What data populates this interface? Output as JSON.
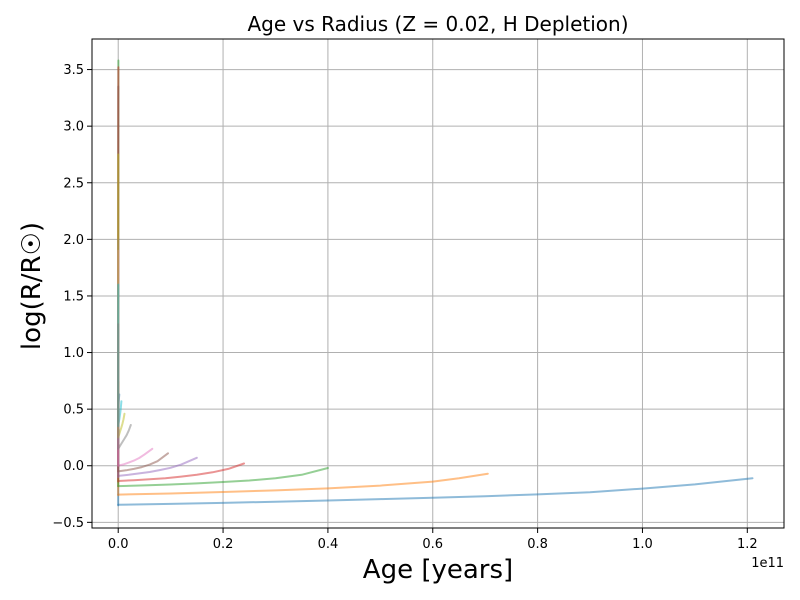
{
  "chart_data": {
    "type": "line",
    "title": "Age vs Radius (Z = 0.02, H Depletion)",
    "xlabel": "Age [years]",
    "ylabel": "log(R/R☉)",
    "x_offset_label": "1e11",
    "xlim": [
      -0.05,
      1.27
    ],
    "ylim": [
      -0.55,
      3.77
    ],
    "x_scale_factor": 100000000000.0,
    "x_ticks": [
      0.0,
      0.2,
      0.4,
      0.6,
      0.8,
      1.0,
      1.2
    ],
    "x_tick_labels": [
      "0.0",
      "0.2",
      "0.4",
      "0.6",
      "0.8",
      "1.0",
      "1.2"
    ],
    "y_ticks": [
      -0.5,
      0.0,
      0.5,
      1.0,
      1.5,
      2.0,
      2.5,
      3.0,
      3.5
    ],
    "y_tick_labels": [
      "−0.5",
      "0.0",
      "0.5",
      "1.0",
      "1.5",
      "2.0",
      "2.5",
      "3.0",
      "3.5"
    ],
    "grid": true,
    "series": [
      {
        "color": "#1f77b4",
        "x": [
          0.0,
          0.1,
          0.2,
          0.3,
          0.4,
          0.5,
          0.6,
          0.7,
          0.8,
          0.9,
          1.0,
          1.1,
          1.21
        ],
        "y": [
          -0.345,
          -0.337,
          -0.328,
          -0.318,
          -0.307,
          -0.295,
          -0.283,
          -0.269,
          -0.253,
          -0.234,
          -0.202,
          -0.165,
          -0.11
        ]
      },
      {
        "color": "#ff7f0e",
        "x": [
          0.0,
          0.1,
          0.2,
          0.3,
          0.4,
          0.5,
          0.6,
          0.65,
          0.705
        ],
        "y": [
          -0.255,
          -0.245,
          -0.232,
          -0.218,
          -0.2,
          -0.175,
          -0.14,
          -0.11,
          -0.07
        ]
      },
      {
        "color": "#2ca02c",
        "x": [
          0.0,
          0.05,
          0.1,
          0.15,
          0.2,
          0.25,
          0.3,
          0.35,
          0.4
        ],
        "y": [
          -0.18,
          -0.174,
          -0.166,
          -0.156,
          -0.144,
          -0.13,
          -0.11,
          -0.08,
          -0.02
        ]
      },
      {
        "color": "#d62728",
        "x": [
          0.0,
          0.03,
          0.06,
          0.09,
          0.12,
          0.15,
          0.18,
          0.21,
          0.24
        ],
        "y": [
          -0.135,
          -0.128,
          -0.12,
          -0.11,
          -0.096,
          -0.08,
          -0.058,
          -0.028,
          0.02
        ]
      },
      {
        "color": "#9467bd",
        "x": [
          0.0,
          0.02,
          0.04,
          0.06,
          0.08,
          0.1,
          0.12,
          0.15
        ],
        "y": [
          -0.09,
          -0.08,
          -0.068,
          -0.055,
          -0.038,
          -0.018,
          0.01,
          0.07
        ]
      },
      {
        "color": "#8c564b",
        "x": [
          0.0,
          0.015,
          0.03,
          0.045,
          0.06,
          0.075,
          0.095
        ],
        "y": [
          -0.05,
          -0.04,
          -0.028,
          -0.012,
          0.01,
          0.04,
          0.11
        ]
      },
      {
        "color": "#e377c2",
        "x": [
          0.0,
          0.01,
          0.02,
          0.03,
          0.04,
          0.05,
          0.065
        ],
        "y": [
          0.0,
          0.012,
          0.028,
          0.045,
          0.068,
          0.098,
          0.15
        ]
      },
      {
        "color": "#7f7f7f",
        "x": [
          0.0,
          0.004,
          0.008,
          0.012,
          0.016,
          0.02,
          0.024
        ],
        "y": [
          0.15,
          0.18,
          0.21,
          0.24,
          0.27,
          0.31,
          0.36
        ]
      },
      {
        "color": "#bcbd22",
        "x": [
          0.0,
          0.002,
          0.004,
          0.006,
          0.008,
          0.01,
          0.012
        ],
        "y": [
          0.25,
          0.28,
          0.31,
          0.34,
          0.37,
          0.41,
          0.46
        ]
      },
      {
        "color": "#17becf",
        "x": [
          0.0,
          0.001,
          0.002,
          0.003,
          0.004,
          0.005,
          0.006
        ],
        "y": [
          0.35,
          0.38,
          0.41,
          0.44,
          0.47,
          0.51,
          0.57
        ]
      },
      {
        "color": "#1f77b4",
        "x": [
          0.0,
          0.0,
          0.0005,
          0.001,
          0.0015,
          0.002
        ],
        "y": [
          -0.35,
          0.4,
          0.5,
          0.56,
          0.6,
          0.63
        ]
      },
      {
        "color": "#ff7f0e",
        "x": [
          0.0,
          0.0,
          0.0003,
          0.0006
        ],
        "y": [
          -0.26,
          0.55,
          0.66,
          0.74
        ]
      },
      {
        "color": "#2ca02c",
        "x": [
          0.0,
          0.0,
          0.0002,
          0.0003,
          0.0004
        ],
        "y": [
          -0.18,
          1.0,
          2.5,
          3.4,
          3.58
        ]
      },
      {
        "color": "#d62728",
        "x": [
          0.0,
          0.0,
          0.0002,
          0.0003
        ],
        "y": [
          -0.14,
          1.5,
          3.2,
          3.52
        ]
      },
      {
        "color": "#9467bd",
        "x": [
          0.0,
          0.0,
          0.0002
        ],
        "y": [
          -0.1,
          1.2,
          2.0
        ]
      },
      {
        "color": "#8c564b",
        "x": [
          0.0,
          0.0,
          0.0002
        ],
        "y": [
          -0.05,
          1.6,
          3.35
        ]
      },
      {
        "color": "#e377c2",
        "x": [
          0.0,
          0.0,
          0.0001
        ],
        "y": [
          0.0,
          1.3,
          1.9
        ]
      },
      {
        "color": "#bcbd22",
        "x": [
          0.0,
          0.0,
          0.0002
        ],
        "y": [
          0.25,
          1.8,
          2.75
        ]
      },
      {
        "color": "#17becf",
        "x": [
          0.0,
          0.0,
          0.0001
        ],
        "y": [
          0.35,
          1.2,
          1.6
        ]
      },
      {
        "color": "#7f7f7f",
        "x": [
          0.0,
          0.0,
          0.0001
        ],
        "y": [
          0.15,
          0.9,
          1.25
        ]
      }
    ]
  }
}
